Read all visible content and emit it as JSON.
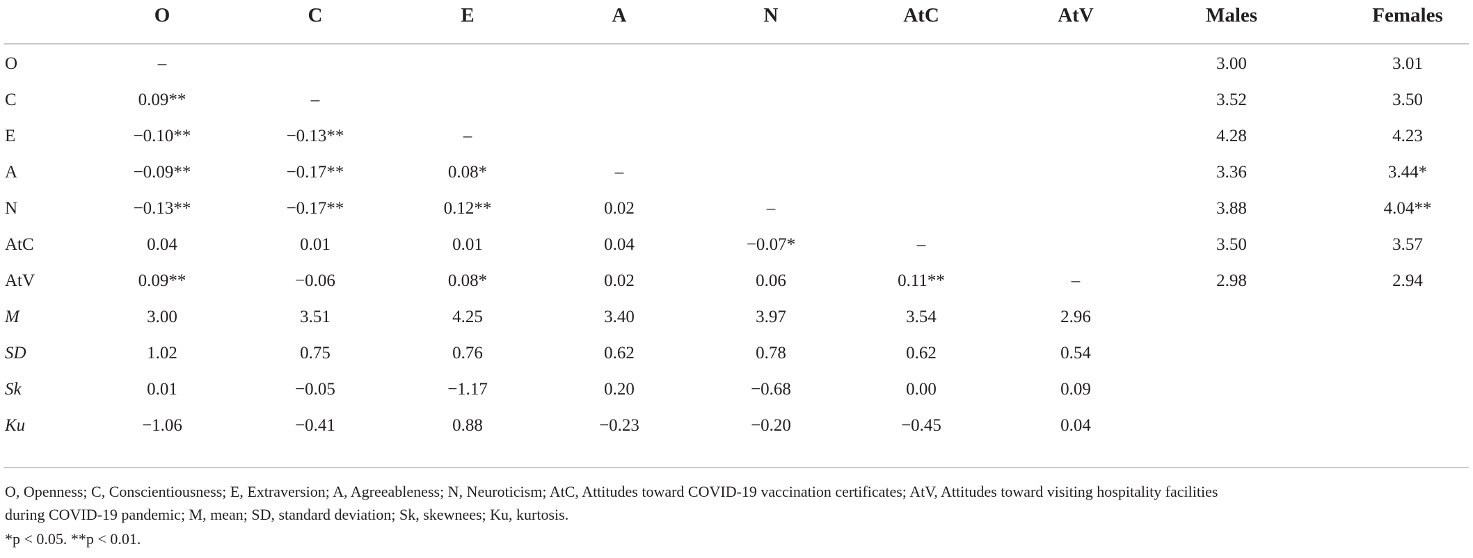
{
  "table": {
    "columns": [
      "O",
      "C",
      "E",
      "A",
      "N",
      "AtC",
      "AtV",
      "Males",
      "Females"
    ],
    "rows": [
      {
        "label": "O",
        "italic": false,
        "cells": [
          "–",
          "",
          "",
          "",
          "",
          "",
          "",
          "3.00",
          "3.01"
        ]
      },
      {
        "label": "C",
        "italic": false,
        "cells": [
          "0.09**",
          "–",
          "",
          "",
          "",
          "",
          "",
          "3.52",
          "3.50"
        ]
      },
      {
        "label": "E",
        "italic": false,
        "cells": [
          "−0.10**",
          "−0.13**",
          "–",
          "",
          "",
          "",
          "",
          "4.28",
          "4.23"
        ]
      },
      {
        "label": "A",
        "italic": false,
        "cells": [
          "−0.09**",
          "−0.17**",
          "0.08*",
          "–",
          "",
          "",
          "",
          "3.36",
          "3.44*"
        ]
      },
      {
        "label": "N",
        "italic": false,
        "cells": [
          "−0.13**",
          "−0.17**",
          "0.12**",
          "0.02",
          "–",
          "",
          "",
          "3.88",
          "4.04**"
        ]
      },
      {
        "label": "AtC",
        "italic": false,
        "cells": [
          "0.04",
          "0.01",
          "0.01",
          "0.04",
          "−0.07*",
          "–",
          "",
          "3.50",
          "3.57"
        ]
      },
      {
        "label": "AtV",
        "italic": false,
        "cells": [
          "0.09**",
          "−0.06",
          "0.08*",
          "0.02",
          "0.06",
          "0.11**",
          "–",
          "2.98",
          "2.94"
        ]
      },
      {
        "label": "M",
        "italic": true,
        "cells": [
          "3.00",
          "3.51",
          "4.25",
          "3.40",
          "3.97",
          "3.54",
          "2.96",
          "",
          ""
        ]
      },
      {
        "label": "SD",
        "italic": true,
        "cells": [
          "1.02",
          "0.75",
          "0.76",
          "0.62",
          "0.78",
          "0.62",
          "0.54",
          "",
          ""
        ]
      },
      {
        "label": "Sk",
        "italic": true,
        "cells": [
          "0.01",
          "−0.05",
          "−1.17",
          "0.20",
          "−0.68",
          "0.00",
          "0.09",
          "",
          ""
        ]
      },
      {
        "label": "Ku",
        "italic": true,
        "cells": [
          "−1.06",
          "−0.41",
          "0.88",
          "−0.23",
          "−0.20",
          "−0.45",
          "0.04",
          "",
          ""
        ]
      }
    ]
  },
  "footnote": {
    "line1": "O, Openness; C, Conscientiousness; E, Extraversion; A, Agreeableness; N, Neuroticism; AtC, Attitudes toward COVID-19 vaccination certificates; AtV, Attitudes toward visiting hospitality facilities",
    "line2": "during COVID-19 pandemic; M, mean; SD, standard deviation; Sk, skewnees; Ku, kurtosis.",
    "line3": "*p < 0.05. **p < 0.01."
  }
}
